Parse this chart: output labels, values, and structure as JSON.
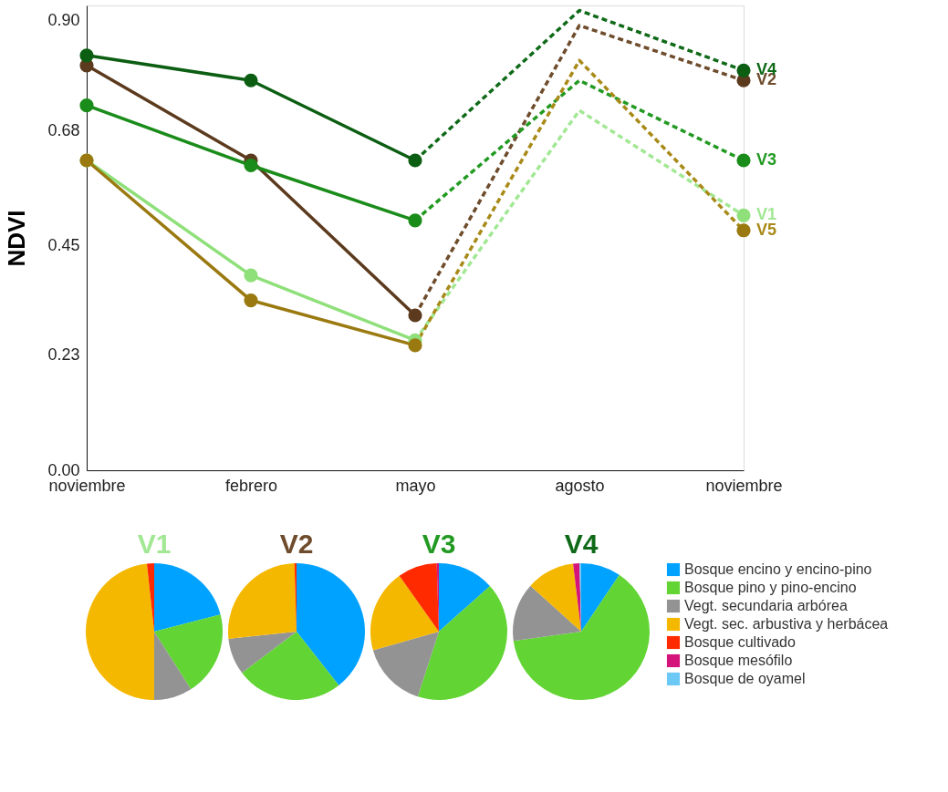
{
  "chart_data": [
    {
      "type": "line",
      "ylabel": "NDVI",
      "categories": [
        "noviembre",
        "febrero",
        "mayo",
        "agosto",
        "noviembre"
      ],
      "ylim": [
        0,
        0.93
      ],
      "yticks": [
        {
          "value": 0,
          "label": "0.00"
        },
        0.23,
        0.45,
        0.68,
        {
          "value": 0.9,
          "label": "0.90"
        }
      ],
      "grid": false,
      "legend": false,
      "series": [
        {
          "color": "#8fe07a",
          "line_style": "solid",
          "marker": "circle",
          "values": [
            0.62,
            0.39,
            0.26,
            null,
            0.51
          ]
        },
        {
          "color": "#5c3a1e",
          "line_style": "solid",
          "marker": "circle",
          "values": [
            0.81,
            0.62,
            0.31,
            null,
            0.78
          ]
        },
        {
          "color": "#1a8c1a",
          "line_style": "solid",
          "marker": "circle",
          "values": [
            0.73,
            0.61,
            0.5,
            null,
            0.62
          ]
        },
        {
          "color": "#0b5e12",
          "line_style": "solid",
          "marker": "circle",
          "values": [
            0.83,
            0.78,
            0.62,
            null,
            0.8
          ]
        },
        {
          "color": "#9a7a10",
          "line_style": "solid",
          "marker": "circle",
          "values": [
            0.62,
            0.34,
            0.25,
            null,
            0.48
          ]
        },
        {
          "name": "V1",
          "color": "#a2e894",
          "line_style": "dashed",
          "marker": "none",
          "values": [
            null,
            null,
            0.26,
            0.72,
            0.51
          ]
        },
        {
          "name": "V2",
          "color": "#6e4c2c",
          "line_style": "dashed",
          "marker": "none",
          "values": [
            null,
            null,
            0.31,
            0.89,
            0.78
          ]
        },
        {
          "name": "V3",
          "color": "#229a22",
          "line_style": "dashed",
          "marker": "none",
          "values": [
            null,
            null,
            0.5,
            0.78,
            0.62
          ]
        },
        {
          "name": "V4",
          "color": "#0f6a18",
          "line_style": "dashed",
          "marker": "none",
          "values": [
            null,
            null,
            0.62,
            0.92,
            0.8
          ]
        },
        {
          "name": "V5",
          "color": "#a88a18",
          "line_style": "dashed",
          "marker": "none",
          "values": [
            null,
            null,
            0.25,
            0.82,
            0.48
          ]
        }
      ]
    },
    {
      "type": "pie",
      "legend": "right",
      "categories": [
        "Bosque encino y encino-pino",
        "Bosque pino y pino-encino",
        "Vegt. secundaria arbórea",
        "Vegt. sec. arbustiva y herbácea",
        "Bosque cultivado",
        "Bosque mesófilo",
        "Bosque de oyamel"
      ],
      "colors": [
        "#00a2ff",
        "#62d434",
        "#939393",
        "#f5b800",
        "#ff2a00",
        "#d4147a",
        "#6cc8f5"
      ],
      "series": [
        {
          "name": "V1",
          "values": [
            21,
            20,
            9,
            48.3,
            1.7,
            0,
            0
          ]
        },
        {
          "name": "V2",
          "values": [
            39.4,
            25.3,
            8.6,
            26.2,
            0.5,
            0,
            0
          ]
        },
        {
          "name": "V3",
          "values": [
            13.4,
            41.6,
            15.6,
            19.6,
            9.3,
            0.5,
            0
          ]
        },
        {
          "name": "V4",
          "values": [
            9.4,
            63.4,
            13.9,
            11.4,
            0,
            1.5,
            0.4
          ]
        }
      ]
    }
  ]
}
